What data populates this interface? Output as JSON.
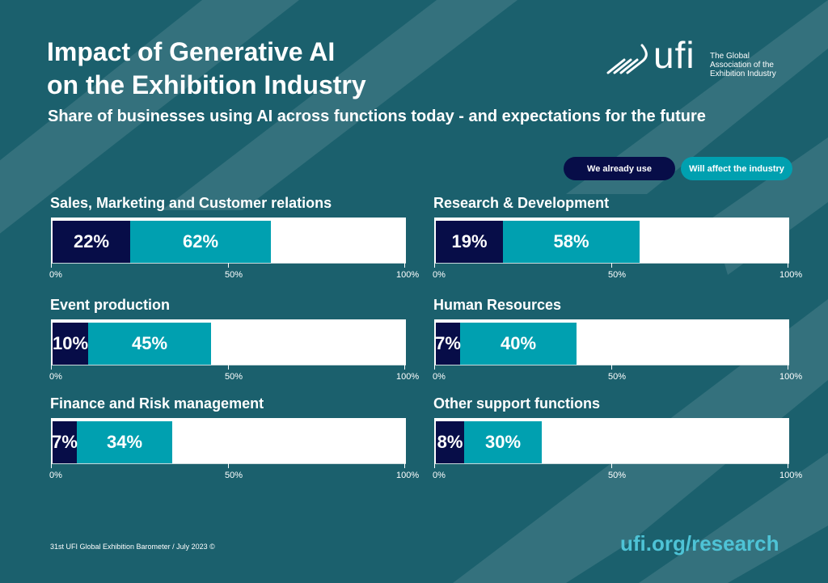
{
  "header": {
    "title_line1": "Impact of Generative AI",
    "title_line2": "on the Exhibition Industry",
    "subtitle": "Share of businesses using AI across functions today - and expectations for the future"
  },
  "logo": {
    "wordmark": "ufi",
    "tagline_line1": "The Global",
    "tagline_line2": "Association of the",
    "tagline_line3": "Exhibition Industry",
    "icon": "ufi-speed-lines-icon"
  },
  "legend": {
    "items": [
      {
        "label": "We already use",
        "color": "#070d48"
      },
      {
        "label": "Will affect the industry",
        "color": "#00a0b0"
      }
    ]
  },
  "colors": {
    "background": "#1b606d",
    "already_use": "#070d48",
    "will_affect": "#00a0b0",
    "link": "#4ec3d6"
  },
  "chart_data": {
    "type": "bar",
    "title": "Share of businesses using AI across functions today - and expectations for the future",
    "orientation": "horizontal",
    "stacking": "overlapping",
    "xlim": [
      0,
      100
    ],
    "x_ticks": [
      "0%",
      "50%",
      "100%"
    ],
    "legend_position": "top-right",
    "categories": [
      "Sales, Marketing and Customer relations",
      "Research & Development",
      "Event production",
      "Human Resources",
      "Finance and Risk management",
      "Other support functions"
    ],
    "series": [
      {
        "name": "We already use",
        "values": [
          22,
          19,
          10,
          7,
          7,
          8
        ]
      },
      {
        "name": "Will affect the industry",
        "values": [
          62,
          58,
          45,
          40,
          34,
          30
        ]
      }
    ],
    "panels": [
      {
        "title": "Sales, Marketing and Customer relations",
        "use": 22,
        "affect": 62,
        "use_label": "22%",
        "affect_label": "62%"
      },
      {
        "title": "Research & Development",
        "use": 19,
        "affect": 58,
        "use_label": "19%",
        "affect_label": "58%"
      },
      {
        "title": "Event production",
        "use": 10,
        "affect": 45,
        "use_label": "10%",
        "affect_label": "45%"
      },
      {
        "title": "Human Resources",
        "use": 7,
        "affect": 40,
        "use_label": "7%",
        "affect_label": "40%"
      },
      {
        "title": "Finance and Risk management",
        "use": 7,
        "affect": 34,
        "use_label": "7%",
        "affect_label": "34%"
      },
      {
        "title": "Other support functions",
        "use": 8,
        "affect": 30,
        "use_label": "8%",
        "affect_label": "30%"
      }
    ]
  },
  "footer": {
    "source": "31st UFI Global Exhibition Barometer / July 2023 ©",
    "link": "ufi.org/research"
  }
}
